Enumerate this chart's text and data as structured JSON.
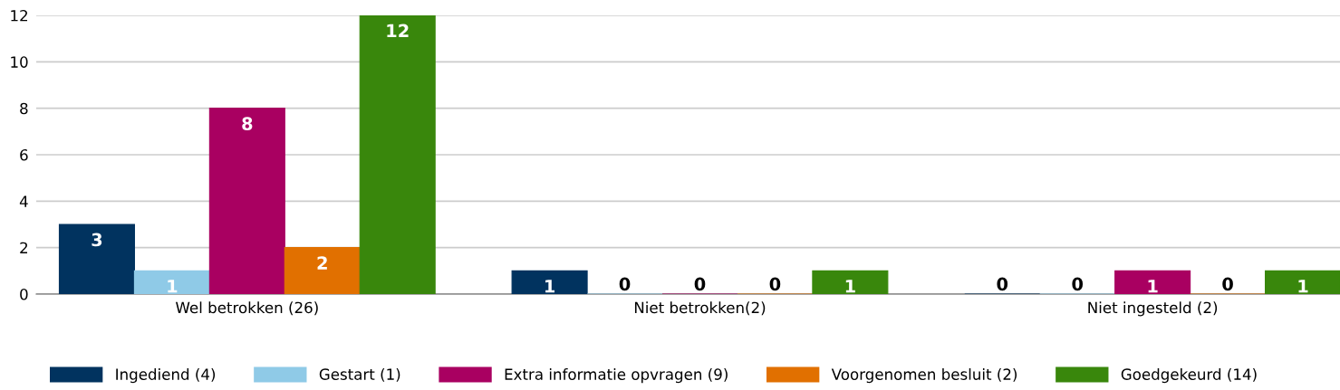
{
  "chart_data": {
    "type": "bar",
    "categories": [
      "Wel betrokken (26)",
      "Niet betrokken(2)",
      "Niet ingesteld (2)"
    ],
    "series": [
      {
        "name": "Ingediend (4)",
        "color": "#01335f",
        "values": [
          3,
          1,
          0
        ]
      },
      {
        "name": "Gestart (1)",
        "color": "#8fcae7",
        "values": [
          1,
          0,
          0
        ]
      },
      {
        "name": "Extra informatie opvragen (9)",
        "color": "#a90061",
        "values": [
          8,
          0,
          1
        ]
      },
      {
        "name": "Voorgenomen besluit (2)",
        "color": "#e17000",
        "values": [
          2,
          0,
          0
        ]
      },
      {
        "name": "Goedgekeurd (14)",
        "color": "#39870c",
        "values": [
          12,
          1,
          1
        ]
      }
    ],
    "ylim": [
      0,
      12
    ],
    "yticks": [
      0,
      2,
      4,
      6,
      8,
      10,
      12
    ],
    "grid": "y",
    "legend": "bottom",
    "data_labels": true
  }
}
